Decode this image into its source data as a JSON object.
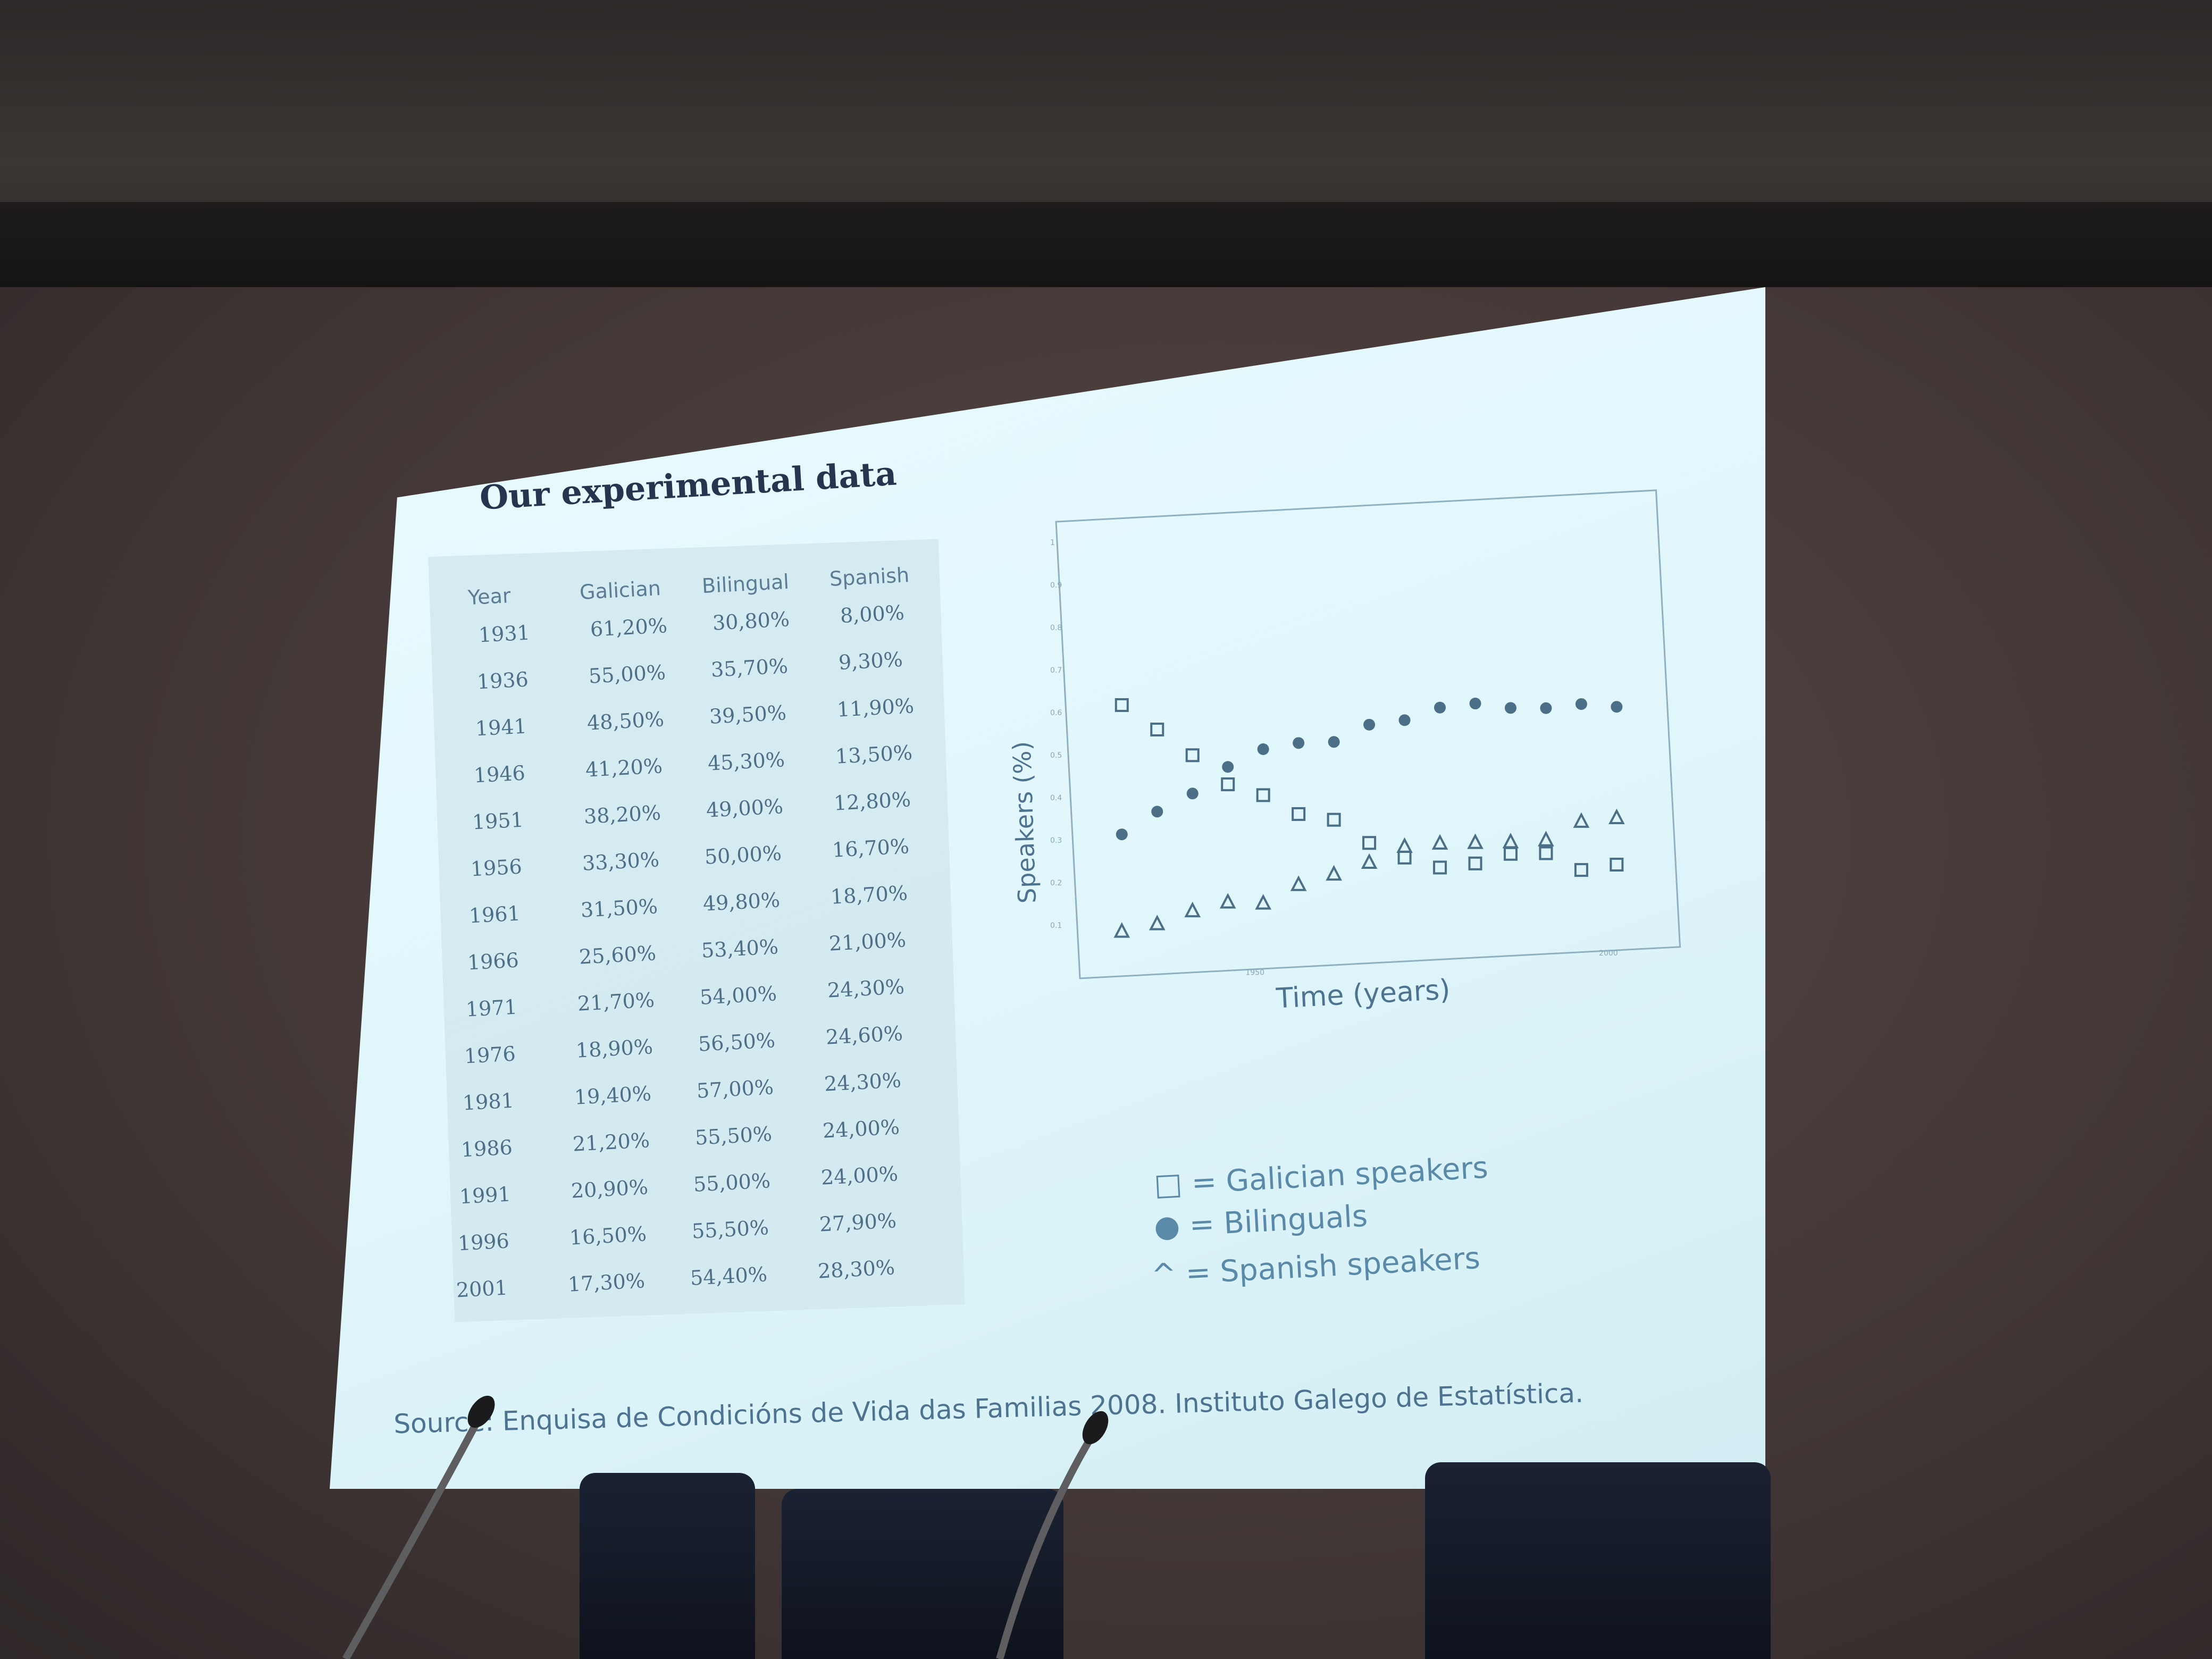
{
  "slide": {
    "title": "Our experimental data",
    "source": "Source: Enquisa de Condicións de Vida das Familias 2008. Instituto Galego de Estatística."
  },
  "table": {
    "headers": [
      "Year",
      "Galician",
      "Bilingual",
      "Spanish"
    ],
    "rows": [
      [
        "1931",
        "61,20%",
        "30,80%",
        "8,00%"
      ],
      [
        "1936",
        "55,00%",
        "35,70%",
        "9,30%"
      ],
      [
        "1941",
        "48,50%",
        "39,50%",
        "11,90%"
      ],
      [
        "1946",
        "41,20%",
        "45,30%",
        "13,50%"
      ],
      [
        "1951",
        "38,20%",
        "49,00%",
        "12,80%"
      ],
      [
        "1956",
        "33,30%",
        "50,00%",
        "16,70%"
      ],
      [
        "1961",
        "31,50%",
        "49,80%",
        "18,70%"
      ],
      [
        "1966",
        "25,60%",
        "53,40%",
        "21,00%"
      ],
      [
        "1971",
        "21,70%",
        "54,00%",
        "24,30%"
      ],
      [
        "1976",
        "18,90%",
        "56,50%",
        "24,60%"
      ],
      [
        "1981",
        "19,40%",
        "57,00%",
        "24,30%"
      ],
      [
        "1986",
        "21,20%",
        "55,50%",
        "24,00%"
      ],
      [
        "1991",
        "20,90%",
        "55,00%",
        "24,00%"
      ],
      [
        "1996",
        "16,50%",
        "55,50%",
        "27,90%"
      ],
      [
        "2001",
        "17,30%",
        "54,40%",
        "28,30%"
      ]
    ]
  },
  "chart_data": {
    "type": "scatter",
    "xlabel": "Time (years)",
    "ylabel": "Speakers (%)",
    "xlim": [
      1925,
      2010
    ],
    "ylim": [
      0,
      1
    ],
    "x_ticks": [
      "1950",
      "2000"
    ],
    "y_ticks": [
      "0.1",
      "0.2",
      "0.3",
      "0.4",
      "0.5",
      "0.6",
      "0.7",
      "0.8",
      "0.9",
      "1"
    ],
    "x": [
      1931,
      1936,
      1941,
      1946,
      1951,
      1956,
      1961,
      1966,
      1971,
      1976,
      1981,
      1986,
      1991,
      1996,
      2001
    ],
    "series": [
      {
        "name": "Galician speakers",
        "marker": "square",
        "values": [
          0.612,
          0.55,
          0.485,
          0.412,
          0.382,
          0.333,
          0.315,
          0.256,
          0.217,
          0.189,
          0.194,
          0.212,
          0.209,
          0.165,
          0.173
        ]
      },
      {
        "name": "Bilinguals",
        "marker": "circle",
        "values": [
          0.308,
          0.357,
          0.395,
          0.453,
          0.49,
          0.5,
          0.498,
          0.534,
          0.54,
          0.565,
          0.57,
          0.555,
          0.55,
          0.555,
          0.544
        ]
      },
      {
        "name": "Spanish speakers",
        "marker": "triangle",
        "values": [
          0.08,
          0.093,
          0.119,
          0.135,
          0.128,
          0.167,
          0.187,
          0.21,
          0.243,
          0.246,
          0.243,
          0.24,
          0.24,
          0.279,
          0.283
        ]
      }
    ],
    "legend": [
      "□ = Galician speakers",
      "● = Bilinguals",
      "^ = Spanish speakers"
    ],
    "legend_position": "bottom",
    "grid": false
  },
  "colors": {
    "screen": "#e3f8fc",
    "marker": "#4a6f86",
    "text": "#4e7390",
    "title": "#27344e"
  }
}
